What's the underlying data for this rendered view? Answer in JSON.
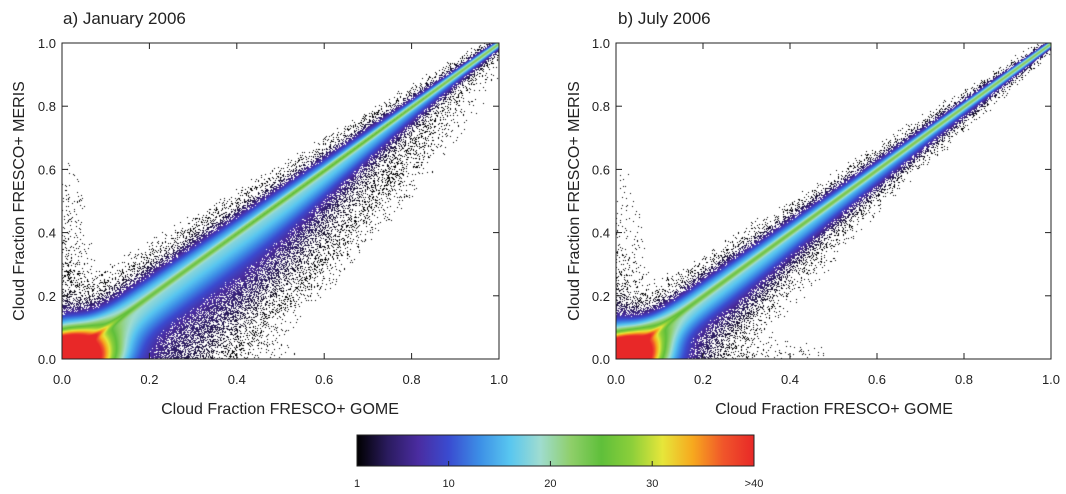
{
  "chart_data": [
    {
      "type": "heatmap",
      "title": "a) January 2006",
      "xlabel": "Cloud Fraction FRESCO+ GOME",
      "ylabel": "Cloud Fraction FRESCO+ MERIS",
      "xlim": [
        0.0,
        1.0
      ],
      "ylim": [
        0.0,
        1.0
      ],
      "xticks": [
        "0.0",
        "0.2",
        "0.4",
        "0.6",
        "0.8",
        "1.0"
      ],
      "yticks": [
        "0.0",
        "0.2",
        "0.4",
        "0.6",
        "0.8",
        "1.0"
      ],
      "grid": false,
      "density": {
        "main_ridge": {
          "from": [
            0.0,
            0.0
          ],
          "to": [
            1.0,
            1.0
          ]
        },
        "upper_wing_width": 0.13,
        "lower_wing_width": 0.27,
        "scatter_below_diagonal": "wide",
        "hotspot_near_origin": [
          0.03,
          0.03
        ]
      }
    },
    {
      "type": "heatmap",
      "title": "b) July 2006",
      "xlabel": "Cloud Fraction FRESCO+ GOME",
      "ylabel": "Cloud Fraction FRESCO+ MERIS",
      "xlim": [
        0.0,
        1.0
      ],
      "ylim": [
        0.0,
        1.0
      ],
      "xticks": [
        "0.0",
        "0.2",
        "0.4",
        "0.6",
        "0.8",
        "1.0"
      ],
      "yticks": [
        "0.0",
        "0.2",
        "0.4",
        "0.6",
        "0.8",
        "1.0"
      ],
      "grid": false,
      "density": {
        "main_ridge": {
          "from": [
            0.0,
            0.0
          ],
          "to": [
            1.0,
            1.0
          ]
        },
        "upper_wing_width": 0.1,
        "lower_wing_width": 0.18,
        "scatter_below_diagonal": "narrow",
        "hotspot_near_origin": [
          0.03,
          0.03
        ]
      }
    }
  ],
  "colorbar": {
    "tick_labels": [
      "1",
      "10",
      "20",
      "30",
      ">40"
    ],
    "tick_values": [
      1,
      10,
      20,
      30,
      40
    ],
    "range": [
      1,
      40
    ],
    "colors": [
      "#000000",
      "#2a1b5e",
      "#4a2ca0",
      "#3a4bd0",
      "#3c8ee6",
      "#58c6f0",
      "#9fdcd0",
      "#8fcf6a",
      "#5fbf3a",
      "#8ccf3a",
      "#e6e63a",
      "#f7a81e",
      "#f0552a",
      "#e82828"
    ]
  }
}
